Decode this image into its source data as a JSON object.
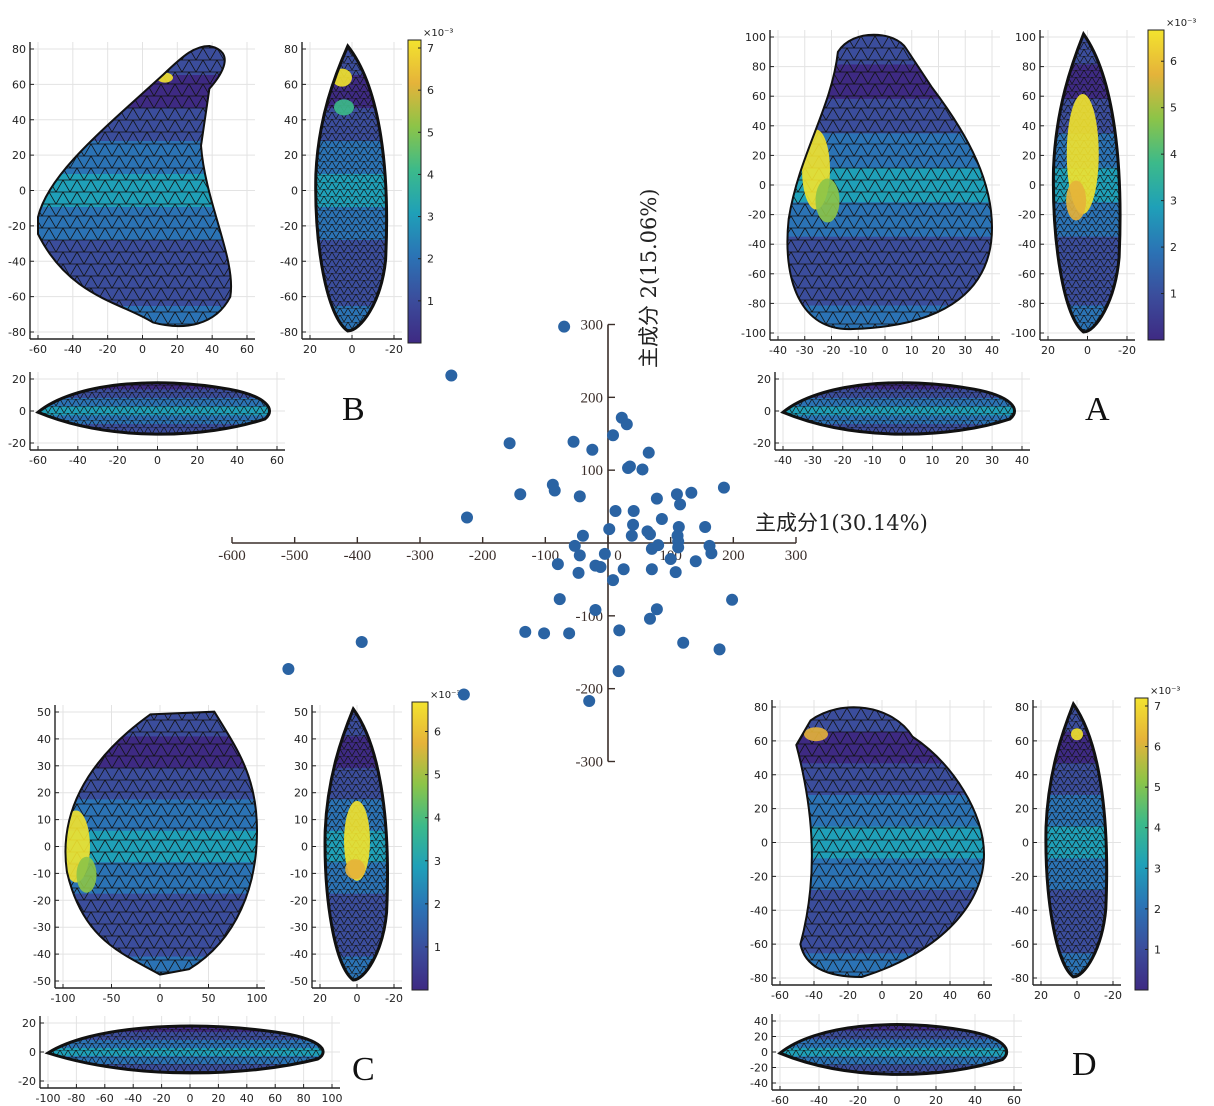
{
  "chart_data": {
    "type": "scatter",
    "title": "",
    "xlabel": "主成分1(30.14%)",
    "ylabel": "主成分 2(15.06%)",
    "xlim": [
      -600,
      300
    ],
    "ylim": [
      -300,
      300
    ],
    "xticks": [
      -600,
      -500,
      -400,
      -300,
      -200,
      -100,
      0,
      100,
      200,
      300
    ],
    "yticks": [
      300,
      200,
      100,
      -100,
      -200,
      -300
    ],
    "x_tick_labels": [
      "-600",
      "-500",
      "-400",
      "-300",
      "-200",
      "-100",
      "0",
      "100",
      "200",
      "300"
    ],
    "y_tick_labels": [
      "300",
      "200",
      "100",
      "-100",
      "-200",
      "-300"
    ],
    "grid": false,
    "point_color": "#2a63a3",
    "points": [
      {
        "x": -70,
        "y": 297
      },
      {
        "x": -250,
        "y": 230
      },
      {
        "x": -157,
        "y": 137
      },
      {
        "x": -55,
        "y": 139
      },
      {
        "x": -25,
        "y": 128
      },
      {
        "x": 22,
        "y": 172
      },
      {
        "x": 30,
        "y": 163
      },
      {
        "x": 8,
        "y": 148
      },
      {
        "x": 65,
        "y": 124
      },
      {
        "x": 35,
        "y": 105
      },
      {
        "x": 32,
        "y": 103
      },
      {
        "x": 55,
        "y": 101
      },
      {
        "x": -140,
        "y": 67
      },
      {
        "x": -88,
        "y": 80
      },
      {
        "x": -85,
        "y": 72
      },
      {
        "x": -45,
        "y": 64
      },
      {
        "x": -225,
        "y": 35
      },
      {
        "x": 12,
        "y": 44
      },
      {
        "x": 41,
        "y": 44
      },
      {
        "x": 78,
        "y": 61
      },
      {
        "x": 110,
        "y": 67
      },
      {
        "x": 133,
        "y": 69
      },
      {
        "x": 115,
        "y": 53
      },
      {
        "x": 185,
        "y": 76
      },
      {
        "x": 86,
        "y": 33
      },
      {
        "x": -40,
        "y": 10
      },
      {
        "x": 2,
        "y": 19
      },
      {
        "x": 40,
        "y": 25
      },
      {
        "x": 38,
        "y": 10
      },
      {
        "x": 63,
        "y": 16
      },
      {
        "x": 67,
        "y": 12
      },
      {
        "x": 113,
        "y": 22
      },
      {
        "x": 155,
        "y": 22
      },
      {
        "x": 111,
        "y": 10
      },
      {
        "x": 112,
        "y": 2
      },
      {
        "x": -53,
        "y": -4
      },
      {
        "x": 70,
        "y": -8
      },
      {
        "x": 80,
        "y": -3
      },
      {
        "x": 112,
        "y": -6
      },
      {
        "x": 162,
        "y": -4
      },
      {
        "x": 165,
        "y": -14
      },
      {
        "x": -45,
        "y": -17
      },
      {
        "x": -5,
        "y": -15
      },
      {
        "x": -80,
        "y": -29
      },
      {
        "x": -20,
        "y": -31
      },
      {
        "x": -12,
        "y": -33
      },
      {
        "x": 25,
        "y": -36
      },
      {
        "x": 70,
        "y": -36
      },
      {
        "x": 100,
        "y": -22
      },
      {
        "x": 140,
        "y": -25
      },
      {
        "x": -47,
        "y": -41
      },
      {
        "x": 108,
        "y": -40
      },
      {
        "x": 8,
        "y": -51
      },
      {
        "x": -77,
        "y": -77
      },
      {
        "x": 198,
        "y": -78
      },
      {
        "x": -20,
        "y": -92
      },
      {
        "x": 78,
        "y": -91
      },
      {
        "x": 67,
        "y": -104
      },
      {
        "x": 18,
        "y": -120
      },
      {
        "x": -132,
        "y": -122
      },
      {
        "x": -102,
        "y": -124
      },
      {
        "x": -62,
        "y": -124
      },
      {
        "x": 120,
        "y": -137
      },
      {
        "x": 178,
        "y": -146
      },
      {
        "x": -393,
        "y": -136
      },
      {
        "x": -510,
        "y": -173
      },
      {
        "x": 17,
        "y": -176
      },
      {
        "x": -230,
        "y": -208
      },
      {
        "x": -30,
        "y": -217
      }
    ]
  },
  "panels": [
    {
      "letter": "A",
      "front_view": {
        "x_ticks": [
          "-40",
          "-30",
          "-20",
          "-10",
          "0",
          "10",
          "20",
          "30",
          "40"
        ],
        "y_ticks": [
          "100",
          "80",
          "60",
          "40",
          "20",
          "0",
          "-20",
          "-40",
          "-60",
          "-80",
          "-100"
        ]
      },
      "side_view": {
        "x_ticks": [
          "20",
          "0",
          "-20"
        ],
        "y_ticks": [
          "100",
          "80",
          "60",
          "40",
          "20",
          "0",
          "-20",
          "-40",
          "-60",
          "-80",
          "-100"
        ]
      },
      "top_view": {
        "x_ticks": [
          "-40",
          "-30",
          "-20",
          "-10",
          "0",
          "10",
          "20",
          "30",
          "40"
        ],
        "y_ticks": [
          "20",
          "0",
          "-20"
        ]
      },
      "colorbar": {
        "exponent": "×10⁻³",
        "ticks": [
          "6",
          "5",
          "4",
          "3",
          "2",
          "1"
        ],
        "max": 6.5
      }
    },
    {
      "letter": "B",
      "front_view": {
        "x_ticks": [
          "-60",
          "-40",
          "-20",
          "0",
          "20",
          "40",
          "60"
        ],
        "y_ticks": [
          "80",
          "60",
          "40",
          "20",
          "0",
          "-20",
          "-40",
          "-60",
          "-80"
        ]
      },
      "side_view": {
        "x_ticks": [
          "20",
          "0",
          "-20"
        ],
        "y_ticks": [
          "80",
          "60",
          "40",
          "20",
          "0",
          "-20",
          "-40",
          "-60",
          "-80"
        ]
      },
      "top_view": {
        "x_ticks": [
          "-60",
          "-40",
          "-20",
          "0",
          "20",
          "40",
          "60"
        ],
        "y_ticks": [
          "20",
          "0",
          "-20"
        ]
      },
      "colorbar": {
        "exponent": "×10⁻³",
        "ticks": [
          "7",
          "6",
          "5",
          "4",
          "3",
          "2",
          "1"
        ],
        "max": 7
      }
    },
    {
      "letter": "C",
      "front_view": {
        "x_ticks": [
          "-100",
          "-50",
          "0",
          "50",
          "100"
        ],
        "y_ticks": [
          "50",
          "40",
          "30",
          "20",
          "10",
          "0",
          "-10",
          "-20",
          "-30",
          "-40",
          "-50"
        ]
      },
      "side_view": {
        "x_ticks": [
          "20",
          "0",
          "-20"
        ],
        "y_ticks": [
          "50",
          "40",
          "30",
          "20",
          "10",
          "0",
          "-10",
          "-20",
          "-30",
          "-40",
          "-50"
        ]
      },
      "top_view": {
        "x_ticks": [
          "-100",
          "-80",
          "-60",
          "-40",
          "-20",
          "0",
          "20",
          "40",
          "60",
          "80",
          "100"
        ],
        "y_ticks": [
          "20",
          "0",
          "-20"
        ]
      },
      "colorbar": {
        "exponent": "×10⁻³",
        "ticks": [
          "6",
          "5",
          "4",
          "3",
          "2",
          "1"
        ],
        "max": 6.5
      }
    },
    {
      "letter": "D",
      "front_view": {
        "x_ticks": [
          "-60",
          "-40",
          "-20",
          "0",
          "20",
          "40",
          "60"
        ],
        "y_ticks": [
          "80",
          "60",
          "40",
          "20",
          "0",
          "-20",
          "-40",
          "-60",
          "-80"
        ]
      },
      "side_view": {
        "x_ticks": [
          "20",
          "0",
          "-20"
        ],
        "y_ticks": [
          "80",
          "60",
          "40",
          "20",
          "0",
          "-20",
          "-40",
          "-60",
          "-80"
        ]
      },
      "top_view": {
        "x_ticks": [
          "-60",
          "-40",
          "-20",
          "0",
          "20",
          "40",
          "60"
        ],
        "y_ticks": [
          "40",
          "20",
          "0",
          "-20",
          "-40"
        ]
      },
      "colorbar": {
        "exponent": "×10⁻³",
        "ticks": [
          "7",
          "6",
          "5",
          "4",
          "3",
          "2",
          "1"
        ],
        "max": 7
      }
    }
  ],
  "colormap": [
    "#3e2a83",
    "#3b4d9c",
    "#2b73b5",
    "#1fa0b8",
    "#3cba8a",
    "#8cc448",
    "#e5b33a",
    "#f3e32e"
  ]
}
